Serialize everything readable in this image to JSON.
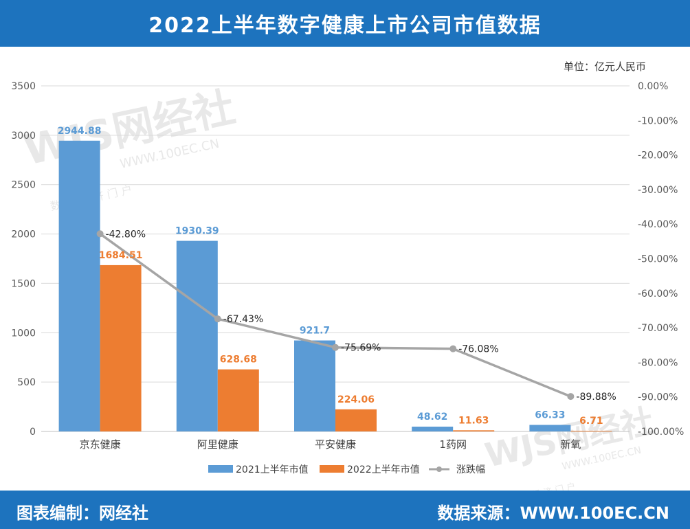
{
  "header": {
    "title": "2022上半年数字健康上市公司市值数据"
  },
  "unit_label": "单位：亿元人民币",
  "footer": {
    "left": "图表编制：网经社",
    "right": "数据来源：WWW.100EC.CN"
  },
  "watermark": {
    "brand": "WJS网经社",
    "url": "WWW.100EC.CN",
    "tagline": "数 字 经 济 门 户"
  },
  "colors": {
    "series2021": "#5b9bd5",
    "series2022": "#ed7d31",
    "change": "#a5a5a5",
    "header": "#1d73be"
  },
  "chart_data": {
    "type": "bar",
    "categories": [
      "京东健康",
      "阿里健康",
      "平安健康",
      "1药网",
      "新氧"
    ],
    "series": [
      {
        "name": "2021上半年市值",
        "values": [
          2944.88,
          1930.39,
          921.7,
          48.62,
          66.33
        ],
        "labels": [
          "2944.88",
          "1930.39",
          "921.7",
          "48.62",
          "66.33"
        ]
      },
      {
        "name": "2022上半年市值",
        "values": [
          1684.51,
          628.68,
          224.06,
          11.63,
          6.71
        ],
        "labels": [
          "1684.51",
          "628.68",
          "224.06",
          "11.63",
          "6.71"
        ]
      }
    ],
    "line_series": {
      "name": "涨跌幅",
      "values": [
        -42.8,
        -67.43,
        -75.69,
        -76.08,
        -89.88
      ],
      "labels": [
        "-42.80%",
        "-67.43%",
        "-75.69%",
        "-76.08%",
        "-89.88%"
      ]
    },
    "ylim": [
      0,
      3500
    ],
    "yticks": [
      "0",
      "500",
      "1000",
      "1500",
      "2000",
      "2500",
      "3000",
      "3500"
    ],
    "y2lim": [
      -100,
      0
    ],
    "y2ticks": [
      "0.00%",
      "-10.00%",
      "-20.00%",
      "-30.00%",
      "-40.00%",
      "-50.00%",
      "-60.00%",
      "-70.00%",
      "-80.00%",
      "-90.00%",
      "-100.00%"
    ],
    "grid": true,
    "legend_position": "bottom"
  }
}
